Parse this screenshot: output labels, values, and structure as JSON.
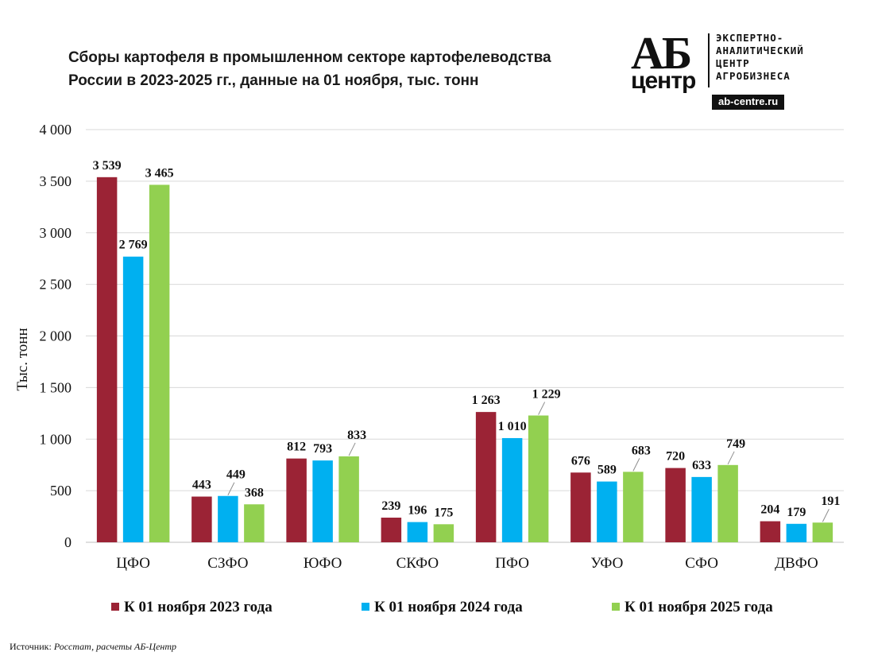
{
  "title": {
    "line1": "Сборы картофеля в промышленном секторе картофелеводства",
    "line2": "России в 2023-2025 гг., данные на 01 ноября, тыс. тонн"
  },
  "logo": {
    "mark": "АБ",
    "mark_sub": "центр",
    "lines": [
      "ЭКСПЕРТНО-",
      "АНАЛИТИЧЕСКИЙ",
      "ЦЕНТР",
      "АГРОБИЗНЕСА"
    ],
    "url": "ab-centre.ru"
  },
  "source": {
    "label": "Источник:",
    "text": "Росстат, расчеты АБ-Центр"
  },
  "chart_data": {
    "type": "bar",
    "title": "Сборы картофеля в промышленном секторе картофелеводства России в 2023-2025 гг., данные на 01 ноября, тыс. тонн",
    "ylabel": "Тыс. тонн",
    "xlabel": "",
    "ylim": [
      0,
      4000
    ],
    "yticks": [
      0,
      500,
      1000,
      1500,
      2000,
      2500,
      3000,
      3500,
      4000
    ],
    "ytick_labels": [
      "0",
      "500",
      "1 000",
      "1 500",
      "2 000",
      "2 500",
      "3 000",
      "3 500",
      "4 000"
    ],
    "grid": true,
    "legend_position": "bottom",
    "categories": [
      "ЦФО",
      "СЗФО",
      "ЮФО",
      "СКФО",
      "ПФО",
      "УФО",
      "СФО",
      "ДВФО"
    ],
    "series": [
      {
        "name": "К 01 ноября 2023 года",
        "color": "#9b2335",
        "values": [
          3539,
          443,
          812,
          239,
          1263,
          676,
          720,
          204
        ],
        "labels": [
          "3 539",
          "443",
          "812",
          "239",
          "1 263",
          "676",
          "720",
          "204"
        ]
      },
      {
        "name": "К 01 ноября 2024 года",
        "color": "#00b0f0",
        "values": [
          2769,
          449,
          793,
          196,
          1010,
          589,
          633,
          179
        ],
        "labels": [
          "2 769",
          "449",
          "793",
          "196",
          "1 010",
          "589",
          "633",
          "179"
        ]
      },
      {
        "name": "К 01 ноября 2025 года",
        "color": "#92d050",
        "values": [
          3465,
          368,
          833,
          175,
          1229,
          683,
          749,
          191
        ],
        "labels": [
          "3 465",
          "368",
          "833",
          "175",
          "1 229",
          "683",
          "749",
          "191"
        ]
      }
    ]
  }
}
